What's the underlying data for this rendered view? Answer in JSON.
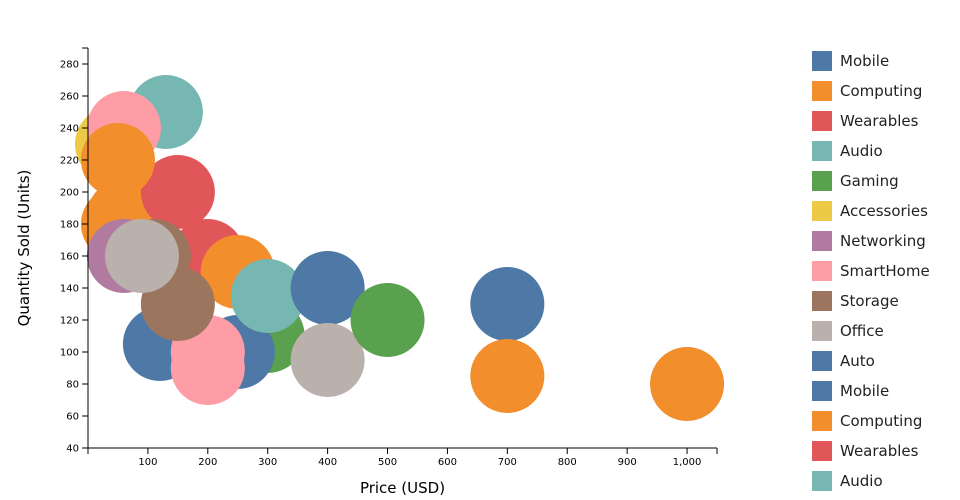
{
  "chart_data": {
    "type": "scatter",
    "xlabel": "Price (USD)",
    "ylabel": "Quantity Sold (Units)",
    "xlim": [
      0,
      1050
    ],
    "ylim": [
      40,
      290
    ],
    "x_ticks": [
      100,
      200,
      300,
      400,
      500,
      600,
      700,
      800,
      900,
      1000
    ],
    "x_tick_labels": [
      "100",
      "200",
      "300",
      "400",
      "500",
      "600",
      "700",
      "800",
      "900",
      "1,000"
    ],
    "y_ticks": [
      40,
      60,
      80,
      100,
      120,
      140,
      160,
      180,
      200,
      220,
      240,
      260,
      280
    ],
    "y_tick_labels": [
      "40",
      "60",
      "80",
      "100",
      "120",
      "140",
      "160",
      "180",
      "200",
      "220",
      "240",
      "260",
      "280"
    ],
    "grid": false,
    "legend_position": "right",
    "legend": [
      {
        "label": "Mobile",
        "color": "#4e79a7"
      },
      {
        "label": "Computing",
        "color": "#f28e2b"
      },
      {
        "label": "Wearables",
        "color": "#e15759"
      },
      {
        "label": "Audio",
        "color": "#76b7b2"
      },
      {
        "label": "Gaming",
        "color": "#59a14f"
      },
      {
        "label": "Accessories",
        "color": "#edc948"
      },
      {
        "label": "Networking",
        "color": "#b07aa1"
      },
      {
        "label": "SmartHome",
        "color": "#ff9da7"
      },
      {
        "label": "Storage",
        "color": "#9c755f"
      },
      {
        "label": "Office",
        "color": "#bab0ac"
      },
      {
        "label": "Auto",
        "color": "#4e79a7"
      },
      {
        "label": "Mobile",
        "color": "#4e79a7"
      },
      {
        "label": "Computing",
        "color": "#f28e2b"
      },
      {
        "label": "Wearables",
        "color": "#e15759"
      },
      {
        "label": "Audio",
        "color": "#76b7b2"
      }
    ],
    "points": [
      {
        "category": "Audio",
        "x": 130,
        "y": 250,
        "color": "#76b7b2"
      },
      {
        "category": "Accessories",
        "x": 40,
        "y": 230,
        "color": "#edc948"
      },
      {
        "category": "Audio",
        "x": 80,
        "y": 195,
        "color": "#76b7b2"
      },
      {
        "category": "Computing",
        "x": 60,
        "y": 185,
        "color": "#f28e2b"
      },
      {
        "category": "Computing",
        "x": 50,
        "y": 180,
        "color": "#f28e2b"
      },
      {
        "category": "Wearables",
        "x": 150,
        "y": 200,
        "color": "#e15759"
      },
      {
        "category": "Wearables",
        "x": 200,
        "y": 160,
        "color": "#e15759"
      },
      {
        "category": "Computing",
        "x": 250,
        "y": 150,
        "color": "#f28e2b"
      },
      {
        "category": "Gaming",
        "x": 300,
        "y": 110,
        "color": "#59a14f"
      },
      {
        "category": "Mobile",
        "x": 120,
        "y": 105,
        "color": "#4e79a7"
      },
      {
        "category": "Mobile",
        "x": 250,
        "y": 100,
        "color": "#4e79a7"
      },
      {
        "category": "SmartHome",
        "x": 200,
        "y": 90,
        "color": "#ff9da7"
      },
      {
        "category": "SmartHome",
        "x": 200,
        "y": 100,
        "color": "#ff9da7"
      },
      {
        "category": "Audio",
        "x": 300,
        "y": 135,
        "color": "#76b7b2"
      },
      {
        "category": "Mobile",
        "x": 400,
        "y": 140,
        "color": "#4e79a7"
      },
      {
        "category": "Office",
        "x": 400,
        "y": 95,
        "color": "#bab0ac"
      },
      {
        "category": "Gaming",
        "x": 500,
        "y": 120,
        "color": "#59a14f"
      },
      {
        "category": "Mobile",
        "x": 700,
        "y": 130,
        "color": "#4e79a7"
      },
      {
        "category": "Computing",
        "x": 700,
        "y": 85,
        "color": "#f28e2b"
      },
      {
        "category": "Computing",
        "x": 1000,
        "y": 80,
        "color": "#f28e2b"
      },
      {
        "category": "Networking",
        "x": 60,
        "y": 160,
        "color": "#b07aa1"
      },
      {
        "category": "Storage",
        "x": 110,
        "y": 160,
        "color": "#9c755f"
      },
      {
        "category": "Storage",
        "x": 150,
        "y": 130,
        "color": "#9c755f"
      },
      {
        "category": "SmartHome",
        "x": 60,
        "y": 240,
        "color": "#ff9da7"
      },
      {
        "category": "Computing",
        "x": 50,
        "y": 220,
        "color": "#f28e2b"
      },
      {
        "category": "Office",
        "x": 90,
        "y": 160,
        "color": "#bab0ac"
      }
    ]
  }
}
